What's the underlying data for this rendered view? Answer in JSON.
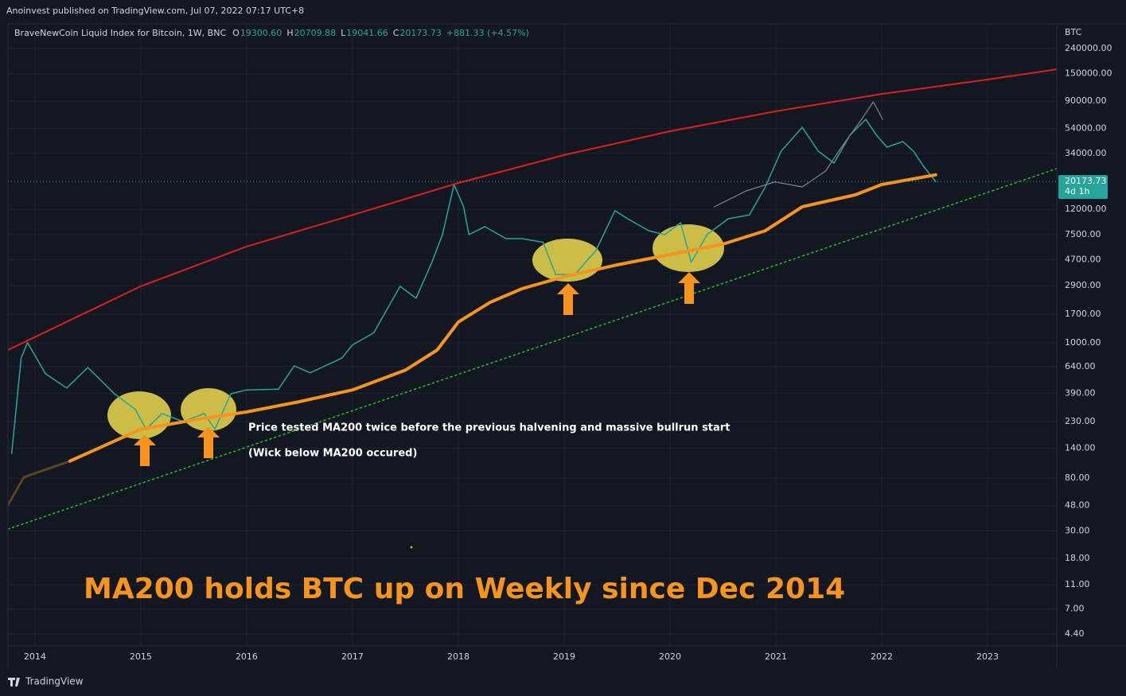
{
  "header": "Anoinvest published on TradingView.com, Jul 07, 2022 07:17 UTC+8",
  "footer": "TradingView",
  "chart_data": {
    "type": "candlestick-log",
    "symbol": "BraveNewCoin Liquid Index for Bitcoin, 1W, BNC",
    "ohlc": [
      {
        "label": "O",
        "value": "19300.60"
      },
      {
        "label": "H",
        "value": "20709.88"
      },
      {
        "label": "L",
        "value": "19041.66"
      },
      {
        "label": "C",
        "value": "20173.73"
      }
    ],
    "change": "+881.33 (+4.57%)",
    "currency": "BTC",
    "last_price": 20173.73,
    "countdown": "4d 1h",
    "log_scale": true,
    "grid": true,
    "xlim": [
      2013.745,
      2023.654
    ],
    "ylim": [
      3.52,
      380000
    ],
    "xticks": [
      2014,
      2015,
      2016,
      2017,
      2018,
      2019,
      2020,
      2021,
      2022,
      2023
    ],
    "yticks": [
      {
        "value": 240000,
        "label": "240000.00"
      },
      {
        "value": 150000,
        "label": "150000.00"
      },
      {
        "value": 90000,
        "label": "90000.00"
      },
      {
        "value": 54000,
        "label": "54000.00"
      },
      {
        "value": 34000,
        "label": "34000.00"
      },
      {
        "value": 12000,
        "label": "12000.00"
      },
      {
        "value": 7500,
        "label": "7500.00"
      },
      {
        "value": 4700,
        "label": "4700.00"
      },
      {
        "value": 2900,
        "label": "2900.00"
      },
      {
        "value": 1700,
        "label": "1700.00"
      },
      {
        "value": 1000,
        "label": "1000.00"
      },
      {
        "value": 640,
        "label": "640.00"
      },
      {
        "value": 390,
        "label": "390.00"
      },
      {
        "value": 230,
        "label": "230.00"
      },
      {
        "value": 140,
        "label": "140.00"
      },
      {
        "value": 80,
        "label": "80.00"
      },
      {
        "value": 48,
        "label": "48.00"
      },
      {
        "value": 30,
        "label": "30.00"
      },
      {
        "value": 18,
        "label": "18.00"
      },
      {
        "value": 11,
        "label": "11.00"
      },
      {
        "value": 7,
        "label": "7.00"
      },
      {
        "value": 4.4,
        "label": "4.40"
      }
    ],
    "lines": [
      {
        "color": "#26a69a",
        "width": 1.5,
        "dash": "none",
        "x": [
          2013.78,
          2013.87,
          2013.93,
          2014.1,
          2014.3,
          2014.5,
          2014.75,
          2014.95,
          2015.05,
          2015.2,
          2015.4,
          2015.6,
          2015.7,
          2015.85,
          2016.0,
          2016.3,
          2016.45,
          2016.6,
          2016.9,
          2017.0,
          2017.2,
          2017.45,
          2017.6,
          2017.75,
          2017.85,
          2017.96,
          2018.05,
          2018.1,
          2018.25,
          2018.45,
          2018.6,
          2018.8,
          2018.92,
          2019.1,
          2019.3,
          2019.48,
          2019.6,
          2019.8,
          2019.95,
          2020.1,
          2020.2,
          2020.35,
          2020.55,
          2020.75,
          2020.9,
          2021.05,
          2021.25,
          2021.4,
          2021.55,
          2021.7,
          2021.85,
          2021.95,
          2022.05,
          2022.2,
          2022.3,
          2022.4,
          2022.51
        ],
        "values": [
          127,
          753,
          1000,
          560,
          430,
          630,
          386,
          287,
          199,
          267,
          230,
          267,
          199,
          386,
          415,
          420,
          650,
          570,
          750,
          960,
          1200,
          2860,
          2290,
          4470,
          7480,
          19050,
          12600,
          7480,
          8690,
          6950,
          6950,
          6500,
          3560,
          3560,
          5570,
          11700,
          10070,
          8050,
          7480,
          9350,
          4470,
          7480,
          10070,
          10800,
          18200,
          35500,
          55300,
          35500,
          28400,
          47800,
          64100,
          47800,
          38200,
          42400,
          35500,
          26400,
          20173.73
        ]
      },
      {
        "color": "#7f8591",
        "width": 1.2,
        "dash": "none",
        "x": [
          2020.42,
          2020.72,
          2020.99,
          2021.25,
          2021.47,
          2021.62,
          2021.81,
          2021.92,
          2022.01
        ],
        "values": [
          12600,
          16900,
          20000,
          18200,
          24500,
          38200,
          64100,
          88900,
          64100
        ]
      },
      {
        "color": "#e01e1e",
        "width": 2,
        "dash": "none",
        "x": [
          2013.745,
          2015.0,
          2016.0,
          2017.0,
          2018.0,
          2019.0,
          2020.0,
          2021.0,
          2022.0,
          2023.0,
          2023.654
        ],
        "values": [
          873,
          2860,
          6000,
          10800,
          19600,
          33000,
          51400,
          74500,
          103000,
          134600,
          163000
        ]
      },
      {
        "color": "#22c322",
        "width": 1.5,
        "dash": "2 4",
        "x": [
          2013.745,
          2023.654
        ],
        "values": [
          31,
          25600
        ]
      },
      {
        "color": "#5c4326",
        "width": 3,
        "dash": "none",
        "x": [
          2013.745,
          2013.895,
          2014.33
        ],
        "values": [
          48.5,
          81.6,
          110
        ]
      },
      {
        "color": "#f7941d",
        "width": 4,
        "dash": "none",
        "x": [
          2014.33,
          2015.0,
          2015.5,
          2016.0,
          2016.5,
          2017.0,
          2017.5,
          2017.8,
          2018.0,
          2018.3,
          2018.6,
          2019.0,
          2019.5,
          2020.0,
          2020.5,
          2020.9,
          2021.25,
          2021.75,
          2022.0,
          2022.51
        ],
        "values": [
          110,
          199,
          237,
          275,
          333,
          415,
          600,
          873,
          1470,
          2120,
          2730,
          3420,
          4260,
          5170,
          6270,
          8050,
          12600,
          15700,
          19050,
          22800
        ]
      }
    ],
    "annotations": [
      "Price tested MA200 twice before the previous halvening and massive bullrun start",
      "(Wick below MA200 occured)",
      "MA200 holds BTC up on Weekly since Dec 2014"
    ]
  }
}
